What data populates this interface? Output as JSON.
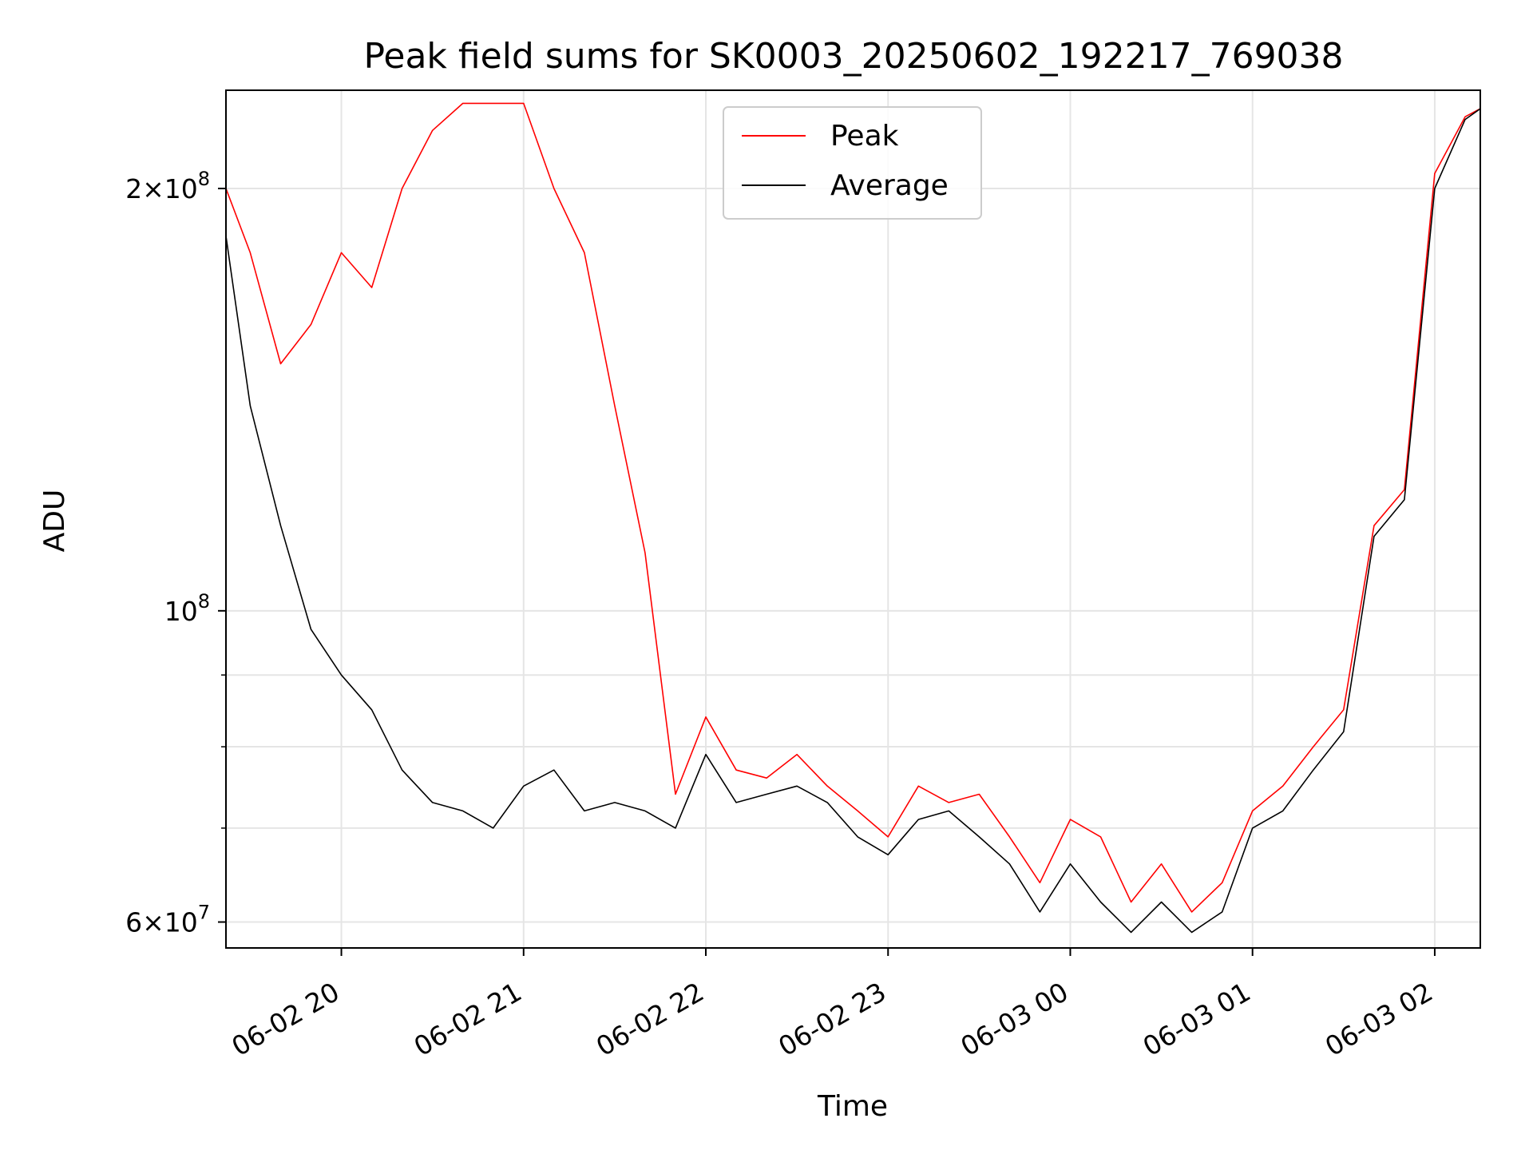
{
  "chart_data": {
    "type": "line",
    "title": "Peak field sums for SK0003_20250602_192217_769038",
    "xlabel": "Time",
    "ylabel": "ADU",
    "y_scale": "log",
    "ylim": [
      57500000,
      235000000
    ],
    "xlim": [
      "06-02 19:22",
      "06-03 02:15"
    ],
    "grid": true,
    "legend_position": "upper center",
    "x_ticks": [
      {
        "time": "06-02 20:00",
        "label": "06-02 20"
      },
      {
        "time": "06-02 21:00",
        "label": "06-02 21"
      },
      {
        "time": "06-02 22:00",
        "label": "06-02 22"
      },
      {
        "time": "06-02 23:00",
        "label": "06-02 23"
      },
      {
        "time": "06-03 00:00",
        "label": "06-03 00"
      },
      {
        "time": "06-03 01:00",
        "label": "06-03 01"
      },
      {
        "time": "06-03 02:00",
        "label": "06-03 02"
      }
    ],
    "y_ticks": [
      {
        "value": 60000000,
        "mant": "6",
        "exp": "7"
      },
      {
        "value": 100000000,
        "mant": "",
        "exp": "8"
      },
      {
        "value": 200000000,
        "mant": "2",
        "exp": "8"
      }
    ],
    "y_minor_ticks": [
      70000000,
      80000000,
      90000000
    ],
    "series": [
      {
        "name": "Peak",
        "color": "#ff0000",
        "x": [
          "06-02 19:22",
          "06-02 19:30",
          "06-02 19:40",
          "06-02 19:50",
          "06-02 20:00",
          "06-02 20:10",
          "06-02 20:20",
          "06-02 20:30",
          "06-02 20:40",
          "06-02 20:50",
          "06-02 21:00",
          "06-02 21:10",
          "06-02 21:20",
          "06-02 21:30",
          "06-02 21:40",
          "06-02 21:50",
          "06-02 22:00",
          "06-02 22:10",
          "06-02 22:20",
          "06-02 22:30",
          "06-02 22:40",
          "06-02 22:50",
          "06-02 23:00",
          "06-02 23:10",
          "06-02 23:20",
          "06-02 23:30",
          "06-02 23:40",
          "06-02 23:50",
          "06-03 00:00",
          "06-03 00:10",
          "06-03 00:20",
          "06-03 00:30",
          "06-03 00:40",
          "06-03 00:50",
          "06-03 01:00",
          "06-03 01:10",
          "06-03 01:20",
          "06-03 01:30",
          "06-03 01:40",
          "06-03 01:50",
          "06-03 02:00",
          "06-03 02:10",
          "06-03 02:15"
        ],
        "values": [
          200000000,
          180000000,
          150000000,
          160000000,
          180000000,
          170000000,
          200000000,
          220000000,
          230000000,
          230000000,
          230000000,
          200000000,
          180000000,
          140000000,
          110000000,
          74000000,
          84000000,
          77000000,
          76000000,
          79000000,
          75000000,
          72000000,
          69000000,
          75000000,
          73000000,
          74000000,
          69000000,
          64000000,
          71000000,
          69000000,
          62000000,
          66000000,
          61000000,
          64000000,
          72000000,
          75000000,
          80000000,
          85000000,
          115000000,
          122000000,
          205000000,
          225000000,
          228000000
        ]
      },
      {
        "name": "Average",
        "color": "#000000",
        "x": [
          "06-02 19:22",
          "06-02 19:30",
          "06-02 19:40",
          "06-02 19:50",
          "06-02 20:00",
          "06-02 20:10",
          "06-02 20:20",
          "06-02 20:30",
          "06-02 20:40",
          "06-02 20:50",
          "06-02 21:00",
          "06-02 21:10",
          "06-02 21:20",
          "06-02 21:30",
          "06-02 21:40",
          "06-02 21:50",
          "06-02 22:00",
          "06-02 22:10",
          "06-02 22:20",
          "06-02 22:30",
          "06-02 22:40",
          "06-02 22:50",
          "06-02 23:00",
          "06-02 23:10",
          "06-02 23:20",
          "06-02 23:30",
          "06-02 23:40",
          "06-02 23:50",
          "06-03 00:00",
          "06-03 00:10",
          "06-03 00:20",
          "06-03 00:30",
          "06-03 00:40",
          "06-03 00:50",
          "06-03 01:00",
          "06-03 01:10",
          "06-03 01:20",
          "06-03 01:30",
          "06-03 01:40",
          "06-03 01:50",
          "06-03 02:00",
          "06-03 02:10",
          "06-03 02:15"
        ],
        "values": [
          185000000,
          140000000,
          115000000,
          97000000,
          90000000,
          85000000,
          77000000,
          73000000,
          72000000,
          70000000,
          75000000,
          77000000,
          72000000,
          73000000,
          72000000,
          70000000,
          79000000,
          73000000,
          74000000,
          75000000,
          73000000,
          69000000,
          67000000,
          71000000,
          72000000,
          69000000,
          66000000,
          61000000,
          66000000,
          62000000,
          59000000,
          62000000,
          59000000,
          61000000,
          70000000,
          72000000,
          77000000,
          82000000,
          113000000,
          120000000,
          200000000,
          224000000,
          228000000
        ]
      }
    ]
  }
}
